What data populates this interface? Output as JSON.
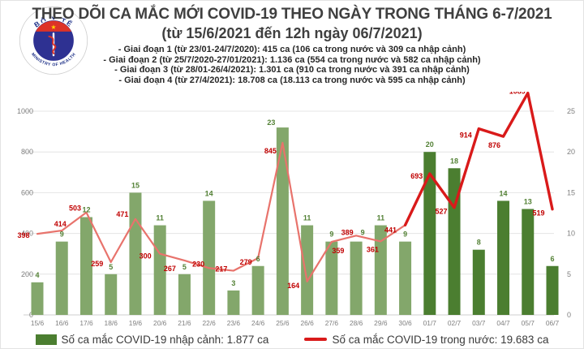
{
  "header": {
    "logo": {
      "top_text": "BỘ Y TẾ",
      "bottom_text": "MINISTRY OF HEALTH"
    },
    "title_line1": "THEO DÕI CA MẮC MỚI COVID-19 THEO NGÀY TRONG THÁNG 6-7/2021",
    "title_line2": "(từ 15/6/2021 đến 12h ngày 06/7/2021)",
    "bullets": [
      "- Giai đoạn 1 (từ 23/01-24/7/2020): 415 ca (106 ca trong nước và 309 ca nhập cảnh)",
      "- Giai đoạn 2 (từ 25/7/2020-27/01/2021): 1.136 ca (554 ca trong nước và 582 ca nhập cảnh)",
      "- Giai đoạn 3 (từ 28/01-26/4/2021): 1.301 ca (910 ca trong nước và 391 ca nhập cảnh)",
      "- Giai đoạn 4 (từ 27/4/2021): 18.708 ca (18.113 ca trong nước và 595 ca nhập cảnh)"
    ]
  },
  "chart_data": {
    "type": "bar",
    "title": "THEO DÕI CA MẮC MỚI COVID-19 THEO NGÀY TRONG THÁNG 6-7/2021",
    "categories": [
      "15/6",
      "16/6",
      "17/6",
      "18/6",
      "19/6",
      "20/6",
      "21/6",
      "22/6",
      "23/6",
      "24/6",
      "25/6",
      "26/6",
      "27/6",
      "28/6",
      "29/6",
      "30/6",
      "01/7",
      "02/7",
      "03/7",
      "04/7",
      "05/7",
      "06/7"
    ],
    "series": [
      {
        "name": "Số ca mắc COVID-19 nhập cảnh",
        "type": "bar",
        "axis": "right",
        "values": [
          4,
          9,
          12,
          5,
          15,
          11,
          5,
          14,
          3,
          6,
          23,
          11,
          9,
          9,
          11,
          9,
          20,
          18,
          8,
          14,
          13,
          6
        ]
      },
      {
        "name": "Số ca mắc COVID-19 trong nước",
        "type": "line",
        "axis": "left",
        "values": [
          398,
          414,
          503,
          259,
          471,
          300,
          267,
          230,
          217,
          279,
          845,
          164,
          359,
          389,
          361,
          441,
          693,
          527,
          914,
          876,
          1089,
          519
        ]
      }
    ],
    "left_axis": {
      "ticks": [
        0,
        200,
        400,
        600,
        800,
        1000
      ],
      "max": 1000
    },
    "right_axis": {
      "ticks": [
        0,
        5,
        10,
        15,
        20,
        25
      ],
      "max": 25
    },
    "style": {
      "bar_color_june": "#83a76b",
      "bar_color_july": "#4b7e30",
      "line_color_light": "#e8736c",
      "line_color_bold": "#d91a1a",
      "label_red": "#c00000",
      "label_green": "#538135",
      "grid_color": "#e4e4e4",
      "zero_line_color": "#cfcfcf",
      "axis_text_color": "#7f7f7f",
      "bold_from_index": 15,
      "dark_bar_from_index": 16,
      "grid": true,
      "legend_position": "bottom"
    }
  },
  "legend": {
    "bar_label": "Số ca mắc COVID-19 nhập cảnh: 1.877 ca",
    "line_label": "Số ca mắc COVID-19 trong nước: 19.683 ca"
  }
}
